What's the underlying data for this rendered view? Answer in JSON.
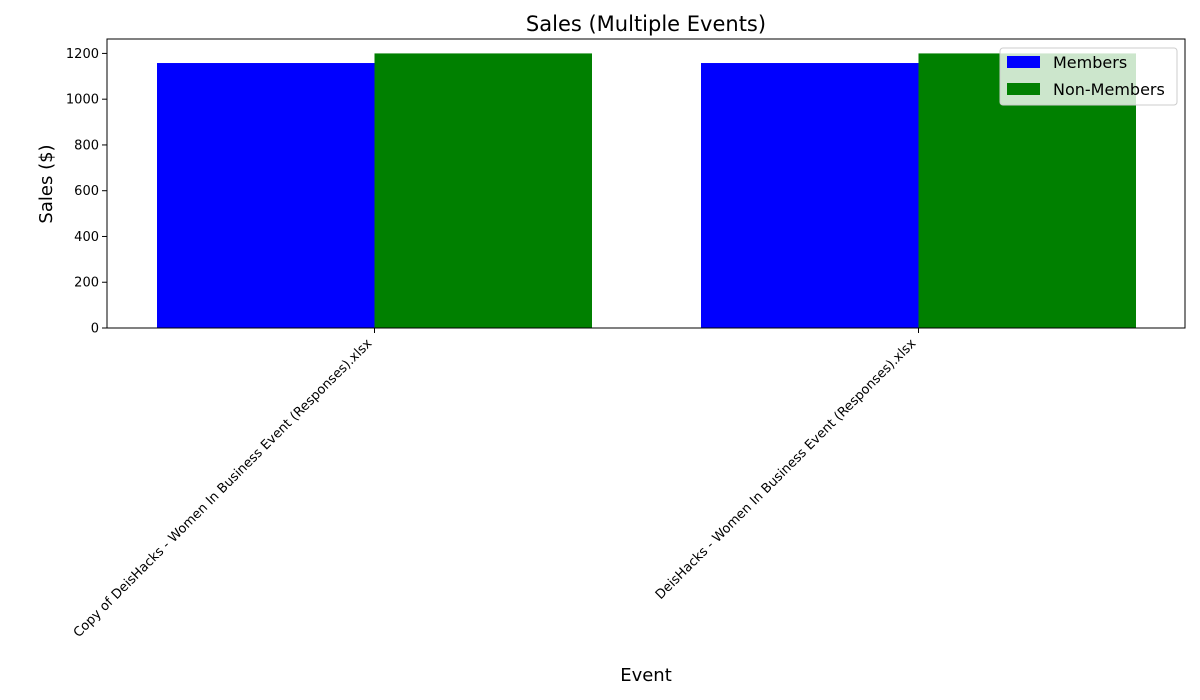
{
  "chart_data": {
    "type": "bar",
    "title": "Sales (Multiple Events)",
    "xlabel": "Event",
    "ylabel": "Sales ($)",
    "categories": [
      "Copy of DeisHacks - Women In Business Event (Responses).xlsx",
      "DeisHacks - Women In Business Event (Responses).xlsx"
    ],
    "series": [
      {
        "name": "Members",
        "values": [
          1158,
          1158
        ],
        "color": "#0000ff"
      },
      {
        "name": "Non-Members",
        "values": [
          1200,
          1200
        ],
        "color": "#008000"
      }
    ],
    "ylim": [
      0,
      1263
    ],
    "yticks": [
      0,
      200,
      400,
      600,
      800,
      1000,
      1200
    ],
    "grid": false,
    "legend_position": "top-right"
  }
}
